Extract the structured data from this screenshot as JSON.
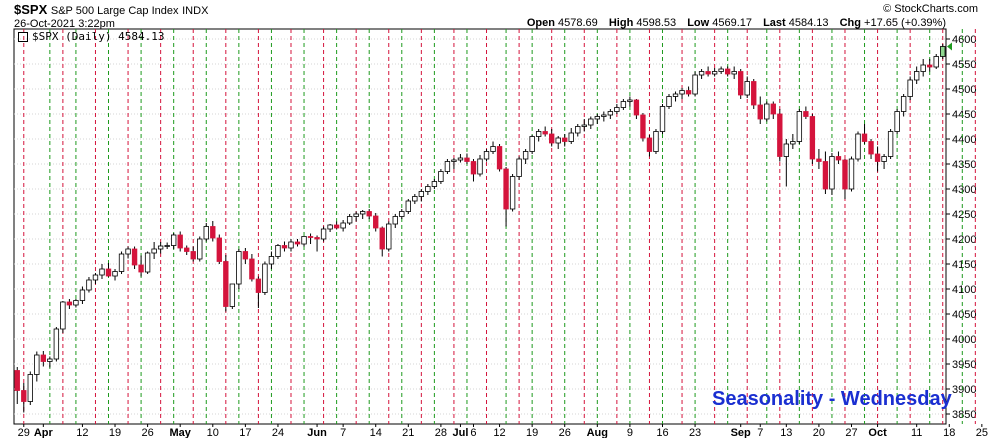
{
  "header": {
    "symbol": "$SPX",
    "description": "S&P 500 Large Cap Index",
    "exchange": "INDX",
    "date": "26-Oct-2021 3:22pm",
    "brand": "© StockCharts.com",
    "open_label": "Open",
    "open": "4578.69",
    "high_label": "High",
    "high": "4598.53",
    "low_label": "Low",
    "low": "4569.17",
    "last_label": "Last",
    "last": "4584.13",
    "chg_label": "Chg",
    "chg": "+17.65 (+0.39%)"
  },
  "legend": {
    "text": "$SPX (Daily) 4584.13"
  },
  "annotation": "Seasonality - Wednesday",
  "chart_data": {
    "type": "candlestick",
    "title": "$SPX (Daily)",
    "ylim": [
      3830,
      4620
    ],
    "yticks": [
      3850,
      3900,
      3950,
      4000,
      4050,
      4100,
      4150,
      4200,
      4250,
      4300,
      4350,
      4400,
      4450,
      4500,
      4550,
      4600
    ],
    "xticks": [
      {
        "label": "29",
        "month": false,
        "index": 1
      },
      {
        "label": "Apr",
        "month": true,
        "index": 4
      },
      {
        "label": "12",
        "month": false,
        "index": 10
      },
      {
        "label": "19",
        "month": false,
        "index": 15
      },
      {
        "label": "26",
        "month": false,
        "index": 20
      },
      {
        "label": "May",
        "month": true,
        "index": 25
      },
      {
        "label": "10",
        "month": false,
        "index": 30
      },
      {
        "label": "17",
        "month": false,
        "index": 35
      },
      {
        "label": "24",
        "month": false,
        "index": 40
      },
      {
        "label": "Jun",
        "month": true,
        "index": 46
      },
      {
        "label": "7",
        "month": false,
        "index": 50
      },
      {
        "label": "14",
        "month": false,
        "index": 55
      },
      {
        "label": "21",
        "month": false,
        "index": 60
      },
      {
        "label": "28",
        "month": false,
        "index": 65
      },
      {
        "label": "Jul",
        "month": true,
        "index": 68
      },
      {
        "label": "6",
        "month": false,
        "index": 70
      },
      {
        "label": "12",
        "month": false,
        "index": 74
      },
      {
        "label": "19",
        "month": false,
        "index": 79
      },
      {
        "label": "26",
        "month": false,
        "index": 84
      },
      {
        "label": "Aug",
        "month": true,
        "index": 89
      },
      {
        "label": "9",
        "month": false,
        "index": 94
      },
      {
        "label": "16",
        "month": false,
        "index": 99
      },
      {
        "label": "23",
        "month": false,
        "index": 104
      },
      {
        "label": "Sep",
        "month": true,
        "index": 111
      },
      {
        "label": "7",
        "month": false,
        "index": 114
      },
      {
        "label": "13",
        "month": false,
        "index": 118
      },
      {
        "label": "20",
        "month": false,
        "index": 123
      },
      {
        "label": "27",
        "month": false,
        "index": 128
      },
      {
        "label": "Oct",
        "month": true,
        "index": 132
      },
      {
        "label": "11",
        "month": false,
        "index": 138
      },
      {
        "label": "18",
        "month": false,
        "index": 143
      },
      {
        "label": "25",
        "month": false,
        "index": 148
      }
    ],
    "wednesday_lines": {
      "red_indices": [
        1,
        7,
        12,
        17,
        22,
        27,
        32,
        37,
        42,
        47,
        52,
        57,
        62,
        67,
        72,
        77,
        82,
        87,
        92,
        97,
        102,
        107,
        112,
        117,
        122,
        127,
        132,
        137,
        142,
        147
      ],
      "green_indices": [
        5,
        9,
        14,
        19,
        24,
        29,
        34,
        39,
        44,
        49,
        54,
        59,
        64,
        69,
        75,
        79,
        84,
        89,
        94,
        99,
        104,
        109,
        115,
        120,
        125,
        130,
        135,
        140,
        145,
        150
      ]
    },
    "colors": {
      "up": "#ffffff",
      "down": "#d4143c",
      "red_line": "#d4143c",
      "green_line": "#1e9a1e",
      "last_up": "#8fd68f"
    },
    "candles": [
      [
        3937,
        3944,
        3870,
        3897
      ],
      [
        3897,
        3912,
        3853,
        3875
      ],
      [
        3875,
        3935,
        3868,
        3929
      ],
      [
        3929,
        3975,
        3915,
        3968
      ],
      [
        3968,
        3976,
        3945,
        3955
      ],
      [
        3955,
        3965,
        3943,
        3960
      ],
      [
        3960,
        4024,
        3955,
        4020
      ],
      [
        4020,
        4076,
        4012,
        4074
      ],
      [
        4074,
        4080,
        4060,
        4068
      ],
      [
        4068,
        4080,
        4063,
        4077
      ],
      [
        4077,
        4105,
        4070,
        4098
      ],
      [
        4098,
        4124,
        4093,
        4118
      ],
      [
        4118,
        4132,
        4110,
        4128
      ],
      [
        4128,
        4150,
        4120,
        4140
      ],
      [
        4140,
        4152,
        4124,
        4126
      ],
      [
        4126,
        4140,
        4117,
        4135
      ],
      [
        4135,
        4175,
        4130,
        4170
      ],
      [
        4170,
        4185,
        4161,
        4180
      ],
      [
        4180,
        4185,
        4140,
        4148
      ],
      [
        4148,
        4167,
        4125,
        4134
      ],
      [
        4134,
        4175,
        4130,
        4172
      ],
      [
        4172,
        4194,
        4160,
        4180
      ],
      [
        4180,
        4194,
        4171,
        4186
      ],
      [
        4186,
        4193,
        4180,
        4187
      ],
      [
        4187,
        4212,
        4180,
        4208
      ],
      [
        4208,
        4215,
        4175,
        4182
      ],
      [
        4182,
        4187,
        4168,
        4175
      ],
      [
        4175,
        4185,
        4155,
        4160
      ],
      [
        4160,
        4205,
        4155,
        4200
      ],
      [
        4200,
        4232,
        4195,
        4225
      ],
      [
        4225,
        4236,
        4195,
        4202
      ],
      [
        4202,
        4209,
        4150,
        4155
      ],
      [
        4155,
        4168,
        4055,
        4065
      ],
      [
        4065,
        4106,
        4060,
        4110
      ],
      [
        4110,
        4180,
        4100,
        4175
      ],
      [
        4175,
        4182,
        4150,
        4160
      ],
      [
        4160,
        4170,
        4115,
        4120
      ],
      [
        4120,
        4125,
        4062,
        4093
      ],
      [
        4093,
        4155,
        4088,
        4150
      ],
      [
        4150,
        4175,
        4140,
        4165
      ],
      [
        4165,
        4190,
        4160,
        4187
      ],
      [
        4187,
        4195,
        4175,
        4182
      ],
      [
        4182,
        4200,
        4175,
        4194
      ],
      [
        4194,
        4200,
        4185,
        4190
      ],
      [
        4190,
        4205,
        4185,
        4205
      ],
      [
        4205,
        4211,
        4190,
        4203
      ],
      [
        4203,
        4207,
        4175,
        4200
      ],
      [
        4200,
        4225,
        4195,
        4220
      ],
      [
        4220,
        4230,
        4214,
        4228
      ],
      [
        4228,
        4235,
        4219,
        4222
      ],
      [
        4222,
        4238,
        4215,
        4232
      ],
      [
        4232,
        4250,
        4228,
        4245
      ],
      [
        4245,
        4255,
        4235,
        4250
      ],
      [
        4250,
        4258,
        4240,
        4255
      ],
      [
        4255,
        4260,
        4240,
        4246
      ],
      [
        4246,
        4252,
        4215,
        4222
      ],
      [
        4222,
        4225,
        4165,
        4180
      ],
      [
        4180,
        4235,
        4175,
        4230
      ],
      [
        4230,
        4250,
        4222,
        4245
      ],
      [
        4245,
        4260,
        4240,
        4255
      ],
      [
        4255,
        4280,
        4250,
        4276
      ],
      [
        4276,
        4290,
        4270,
        4285
      ],
      [
        4285,
        4300,
        4275,
        4295
      ],
      [
        4295,
        4310,
        4288,
        4305
      ],
      [
        4305,
        4320,
        4300,
        4315
      ],
      [
        4315,
        4340,
        4310,
        4335
      ],
      [
        4335,
        4360,
        4330,
        4355
      ],
      [
        4355,
        4362,
        4340,
        4358
      ],
      [
        4358,
        4370,
        4353,
        4362
      ],
      [
        4362,
        4371,
        4350,
        4355
      ],
      [
        4355,
        4360,
        4315,
        4330
      ],
      [
        4330,
        4368,
        4325,
        4360
      ],
      [
        4360,
        4380,
        4355,
        4375
      ],
      [
        4375,
        4395,
        4370,
        4385
      ],
      [
        4385,
        4390,
        4335,
        4340
      ],
      [
        4340,
        4344,
        4225,
        4260
      ],
      [
        4260,
        4330,
        4255,
        4325
      ],
      [
        4325,
        4365,
        4318,
        4360
      ],
      [
        4360,
        4380,
        4350,
        4375
      ],
      [
        4375,
        4408,
        4370,
        4405
      ],
      [
        4405,
        4420,
        4395,
        4415
      ],
      [
        4415,
        4425,
        4405,
        4410
      ],
      [
        4410,
        4420,
        4385,
        4392
      ],
      [
        4392,
        4406,
        4380,
        4402
      ],
      [
        4402,
        4410,
        4385,
        4395
      ],
      [
        4395,
        4422,
        4390,
        4412
      ],
      [
        4412,
        4430,
        4405,
        4425
      ],
      [
        4425,
        4440,
        4415,
        4428
      ],
      [
        4428,
        4445,
        4420,
        4440
      ],
      [
        4440,
        4450,
        4430,
        4445
      ],
      [
        4445,
        4455,
        4435,
        4448
      ],
      [
        4448,
        4460,
        4440,
        4455
      ],
      [
        4455,
        4470,
        4450,
        4463
      ],
      [
        4463,
        4480,
        4458,
        4475
      ],
      [
        4475,
        4485,
        4465,
        4478
      ],
      [
        4478,
        4480,
        4440,
        4448
      ],
      [
        4448,
        4452,
        4395,
        4402
      ],
      [
        4402,
        4408,
        4365,
        4375
      ],
      [
        4375,
        4420,
        4370,
        4415
      ],
      [
        4415,
        4470,
        4410,
        4465
      ],
      [
        4465,
        4490,
        4460,
        4485
      ],
      [
        4485,
        4495,
        4475,
        4490
      ],
      [
        4490,
        4502,
        4480,
        4497
      ],
      [
        4497,
        4505,
        4485,
        4490
      ],
      [
        4490,
        4535,
        4485,
        4528
      ],
      [
        4528,
        4540,
        4520,
        4535
      ],
      [
        4535,
        4545,
        4525,
        4530
      ],
      [
        4530,
        4542,
        4525,
        4535
      ],
      [
        4535,
        4545,
        4530,
        4540
      ],
      [
        4540,
        4545,
        4525,
        4530
      ],
      [
        4530,
        4545,
        4520,
        4535
      ],
      [
        4535,
        4540,
        4480,
        4488
      ],
      [
        4488,
        4525,
        4482,
        4515
      ],
      [
        4515,
        4520,
        4460,
        4468
      ],
      [
        4468,
        4485,
        4430,
        4440
      ],
      [
        4440,
        4475,
        4435,
        4470
      ],
      [
        4470,
        4475,
        4440,
        4450
      ],
      [
        4450,
        4460,
        4355,
        4365
      ],
      [
        4365,
        4400,
        4305,
        4390
      ],
      [
        4390,
        4410,
        4380,
        4395
      ],
      [
        4395,
        4460,
        4390,
        4455
      ],
      [
        4455,
        4465,
        4440,
        4445
      ],
      [
        4445,
        4450,
        4350,
        4360
      ],
      [
        4360,
        4380,
        4340,
        4355
      ],
      [
        4355,
        4375,
        4290,
        4300
      ],
      [
        4300,
        4372,
        4288,
        4365
      ],
      [
        4365,
        4375,
        4350,
        4358
      ],
      [
        4358,
        4360,
        4280,
        4300
      ],
      [
        4300,
        4365,
        4295,
        4360
      ],
      [
        4360,
        4415,
        4355,
        4410
      ],
      [
        4410,
        4430,
        4390,
        4395
      ],
      [
        4395,
        4400,
        4360,
        4370
      ],
      [
        4370,
        4385,
        4335,
        4355
      ],
      [
        4355,
        4370,
        4340,
        4365
      ],
      [
        4365,
        4420,
        4360,
        4415
      ],
      [
        4415,
        4460,
        4410,
        4455
      ],
      [
        4455,
        4490,
        4445,
        4485
      ],
      [
        4485,
        4525,
        4478,
        4518
      ],
      [
        4518,
        4545,
        4510,
        4535
      ],
      [
        4535,
        4560,
        4525,
        4548
      ],
      [
        4548,
        4560,
        4535,
        4544
      ],
      [
        4544,
        4570,
        4540,
        4565
      ],
      [
        4565,
        4590,
        4560,
        4585
      ]
    ]
  }
}
